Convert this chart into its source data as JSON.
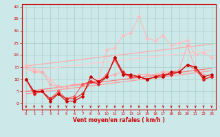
{
  "xlabel": "Vent moyen/en rafales ( km/h )",
  "background_color": "#cce8e8",
  "grid_color": "#aacccc",
  "x_ticks": [
    0,
    1,
    2,
    3,
    4,
    5,
    6,
    7,
    8,
    9,
    10,
    11,
    12,
    13,
    14,
    15,
    16,
    17,
    18,
    19,
    20,
    21,
    22,
    23
  ],
  "ylim": [
    -2.5,
    41
  ],
  "xlim": [
    -0.5,
    23.5
  ],
  "yticks": [
    0,
    5,
    10,
    15,
    20,
    25,
    30,
    35,
    40
  ],
  "line1_x": [
    0,
    1,
    2,
    3,
    4,
    5,
    6,
    7,
    8,
    9,
    10,
    11,
    12,
    13,
    14,
    15,
    16,
    17,
    18,
    19,
    20,
    21,
    22,
    23
  ],
  "line1_y": [
    10,
    5,
    5,
    1,
    4,
    1,
    1,
    3,
    11,
    9,
    11,
    19,
    12,
    12,
    11,
    10,
    11,
    11,
    13,
    13,
    16,
    15,
    11,
    12
  ],
  "line1_color": "#cc0000",
  "line2_x": [
    0,
    1,
    2,
    3,
    4,
    5,
    6,
    7,
    8,
    9,
    10,
    11,
    12,
    13,
    14,
    15,
    16,
    17,
    18,
    19,
    20,
    21,
    22,
    23
  ],
  "line2_y": [
    10,
    4,
    5,
    2,
    4,
    2,
    2,
    4,
    9,
    8,
    11,
    19,
    13,
    11,
    11,
    10,
    11,
    12,
    12,
    13,
    16,
    15,
    10,
    11
  ],
  "line2_color": "#dd2222",
  "line3_x": [
    0,
    1,
    2,
    3,
    4,
    5,
    6,
    7,
    8,
    9,
    10,
    11,
    12,
    13,
    14,
    15,
    16,
    17,
    18,
    19,
    20,
    21,
    22,
    23
  ],
  "line3_y": [
    10,
    4,
    5,
    2,
    5,
    2,
    3,
    8,
    9,
    9,
    12,
    18,
    12,
    11,
    11,
    10,
    11,
    12,
    12,
    13,
    16,
    14,
    10,
    11
  ],
  "line3_color": "#ff5555",
  "line4_x": [
    0,
    1,
    2,
    3,
    4,
    5,
    6,
    7,
    8,
    9,
    10,
    11,
    12,
    13,
    14,
    15,
    16,
    17,
    18,
    19,
    20,
    21,
    22,
    23
  ],
  "line4_y": [
    15,
    13,
    13,
    8,
    7,
    7,
    8,
    8,
    9,
    9,
    11,
    12,
    13,
    11,
    12,
    12,
    12,
    13,
    13,
    14,
    24,
    14,
    12,
    11
  ],
  "line4_color": "#ffaaaa",
  "line5_x": [
    0,
    1,
    2,
    3,
    4,
    5,
    6,
    7,
    8,
    9,
    10,
    11,
    12,
    13,
    14,
    15,
    16,
    17,
    18,
    19,
    20,
    21,
    22,
    23
  ],
  "line5_y": [
    16,
    14,
    13,
    10,
    7,
    7,
    8,
    8,
    9,
    10,
    22,
    23,
    28,
    29,
    36,
    27,
    26,
    28,
    24,
    25,
    26,
    20,
    21,
    19
  ],
  "line5_color": "#ffbbbb",
  "trend1_x": [
    0,
    23
  ],
  "trend1_y": [
    15.5,
    24.5
  ],
  "trend1_color": "#ffaaaa",
  "trend2_x": [
    0,
    23
  ],
  "trend2_y": [
    13.5,
    22.0
  ],
  "trend2_color": "#ffcccc",
  "trend3_x": [
    0,
    23
  ],
  "trend3_y": [
    5.0,
    14.5
  ],
  "trend3_color": "#ff7777",
  "trend4_x": [
    0,
    23
  ],
  "trend4_y": [
    4.0,
    13.5
  ],
  "trend4_color": "#ff9999"
}
